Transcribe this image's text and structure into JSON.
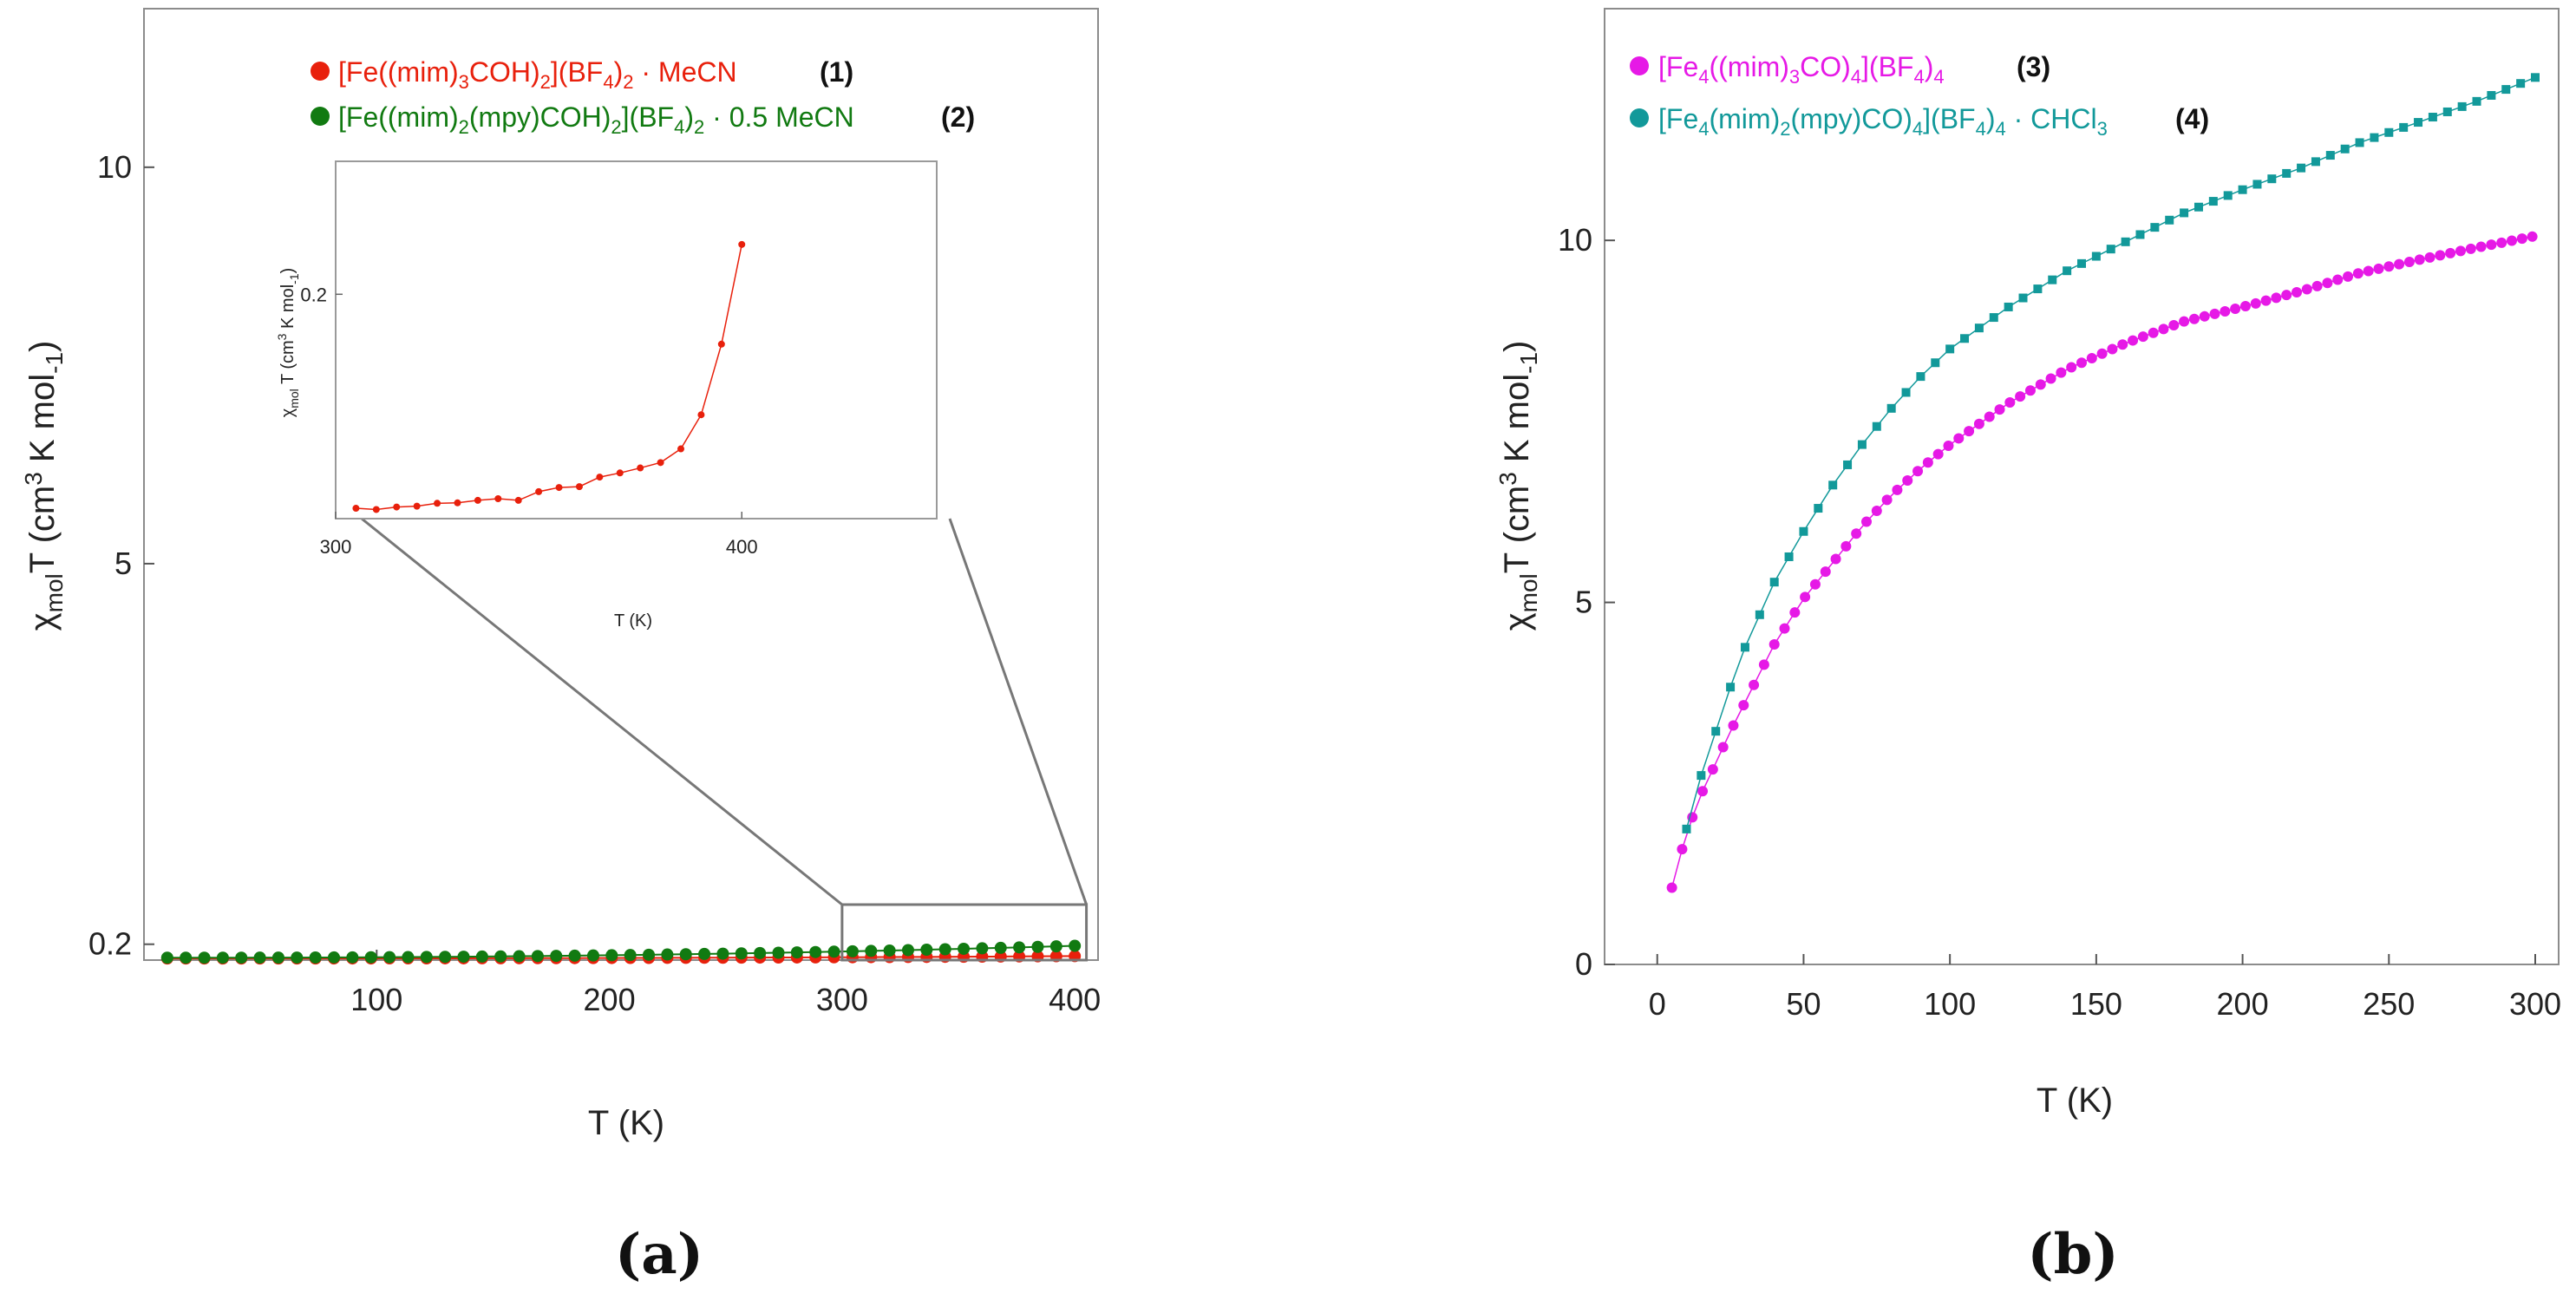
{
  "chart_data": [
    {
      "panel": "(a)",
      "type": "scatter",
      "xlabel": "T (K)",
      "ylabel": "χmolT (cm3 K mol-1)",
      "xlim": [
        0,
        410
      ],
      "ylim": [
        0,
        12
      ],
      "xticks": [
        "100",
        "200",
        "300",
        "400"
      ],
      "yticks": [
        "0.2",
        "5",
        "10"
      ],
      "ytick_values": [
        0.2,
        5,
        10
      ],
      "legend": [
        {
          "formula": "[Fe((mim)3COH)2](BF4)2 · MeCN",
          "number": "(1)",
          "color": "#e8200c"
        },
        {
          "formula": "[Fe((mim)2(mpy)COH)2](BF4)2 · 0.5 MeCN",
          "number": "(2)",
          "color": "#117a11"
        }
      ],
      "series": [
        {
          "name": "(1)",
          "color": "#e8200c",
          "x_start": 10,
          "x_end": 400,
          "y_start": 0.02,
          "y_end": 0.05
        },
        {
          "name": "(2)",
          "color": "#117a11",
          "x_start": 10,
          "x_end": 400,
          "y_start": 0.03,
          "y_end": 0.18
        }
      ],
      "zoom_box_x": [
        300,
        405
      ],
      "zoom_box_y": [
        0,
        0.7
      ],
      "inset": {
        "xlabel": "T (K)",
        "ylabel": "χmolT (cm3 K mol-1)",
        "xlim": [
          300,
          448
        ],
        "ylim": [
          0.146,
          0.232
        ],
        "xticks": [
          "300",
          "400"
        ],
        "yticks": [
          "0.2"
        ],
        "series": {
          "name": "(1)",
          "color": "#e8200c",
          "x": [
            305,
            310,
            315,
            320,
            325,
            330,
            335,
            340,
            345,
            350,
            355,
            360,
            365,
            370,
            375,
            380,
            385,
            390,
            395,
            400
          ],
          "y": [
            0.1485,
            0.1482,
            0.1488,
            0.149,
            0.1497,
            0.1498,
            0.1504,
            0.1508,
            0.1504,
            0.1525,
            0.1535,
            0.1537,
            0.156,
            0.157,
            0.1582,
            0.1595,
            0.1628,
            0.171,
            0.188,
            0.212
          ]
        }
      }
    },
    {
      "panel": "(b)",
      "type": "scatter",
      "xlabel": "T (K)",
      "ylabel": "χmolT (cm3 K mol-1)",
      "xlim": [
        -18,
        308
      ],
      "ylim": [
        0,
        13.2
      ],
      "xticks": [
        "0",
        "50",
        "100",
        "150",
        "200",
        "250",
        "300"
      ],
      "yticks": [
        "0",
        "5",
        "10"
      ],
      "legend": [
        {
          "formula": "[Fe4((mim)3CO)4](BF4)4",
          "number": "(3)",
          "color": "#e619e6"
        },
        {
          "formula": "[Fe4(mim)2(mpy)CO)4](BF4)4 · CHCl3",
          "number": "(4)",
          "color": "#12999a"
        }
      ],
      "series": [
        {
          "name": "(3)",
          "color": "#e619e6",
          "marker": "circle",
          "x": [
            5,
            10,
            15,
            20,
            25,
            30,
            40,
            50,
            60,
            70,
            80,
            90,
            100,
            120,
            140,
            160,
            180,
            200,
            220,
            240,
            260,
            280,
            300
          ],
          "y": [
            1.06,
            1.82,
            2.35,
            2.78,
            3.22,
            3.62,
            4.42,
            5.05,
            5.55,
            6.05,
            6.48,
            6.85,
            7.18,
            7.75,
            8.22,
            8.58,
            8.88,
            9.08,
            9.3,
            9.55,
            9.73,
            9.9,
            10.06
          ]
        },
        {
          "name": "(4)",
          "color": "#12999a",
          "marker": "square",
          "x": [
            10,
            15,
            20,
            25,
            30,
            40,
            50,
            60,
            70,
            80,
            90,
            100,
            120,
            140,
            160,
            180,
            200,
            220,
            240,
            260,
            280,
            300
          ],
          "y": [
            1.87,
            2.61,
            3.22,
            3.83,
            4.38,
            5.28,
            5.98,
            6.62,
            7.18,
            7.68,
            8.12,
            8.5,
            9.08,
            9.58,
            9.98,
            10.38,
            10.7,
            11.0,
            11.35,
            11.63,
            11.92,
            12.25
          ]
        }
      ]
    }
  ]
}
